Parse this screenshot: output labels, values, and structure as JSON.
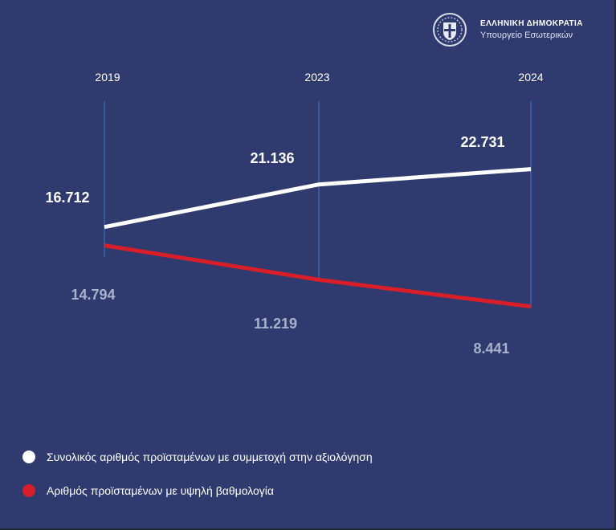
{
  "header": {
    "org_line1": "ΕΛΛΗΝΙΚΗ ΔΗΜΟΚΡΑΤΙΑ",
    "org_line2": "Υπουργείο Εσωτερικών"
  },
  "colors": {
    "background": "#2f3b6f",
    "series_total": "#ffffff",
    "series_high": "#d81e28",
    "grid_line": "#3f74c8",
    "label_total": "#ffffff",
    "label_high": "#a9b2cb"
  },
  "chart_data": {
    "type": "line",
    "x": [
      "2019",
      "2023",
      "2024"
    ],
    "series": [
      {
        "name": "Συνολικός αριθμός προϊσταμένων με συμμετοχή στην αξιολόγηση",
        "values": [
          16712,
          21136,
          22731
        ],
        "labels": [
          "16.712",
          "21.136",
          "22.731"
        ],
        "color": "#ffffff"
      },
      {
        "name": "Αριθμός προϊσταμένων με υψηλή βαθμολογία",
        "values": [
          14794,
          11219,
          8441
        ],
        "labels": [
          "14.794",
          "11.219",
          "8.441"
        ],
        "color": "#d81e28"
      }
    ],
    "legend": "bottom-left",
    "grid": "vertical lines at each year"
  }
}
